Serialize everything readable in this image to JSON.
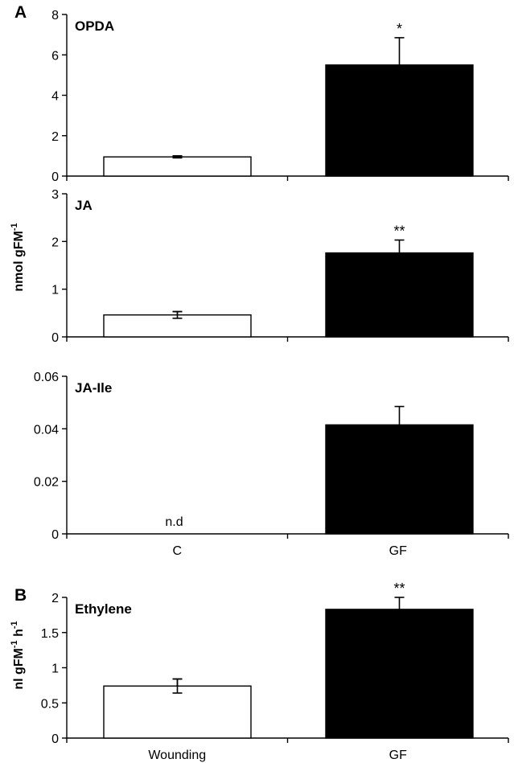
{
  "figure": {
    "panel_a_letter": "A",
    "panel_b_letter": "B",
    "ylabel_a": "nmol gFM",
    "ylabel_a_sup": "-1",
    "ylabel_b_main": "nl gFM",
    "ylabel_b_sup1": "-1",
    "ylabel_b_mid": " h",
    "ylabel_b_sup2": "-1"
  },
  "chart_data": [
    {
      "type": "bar",
      "title": "OPDA",
      "categories": [
        "C",
        "GF"
      ],
      "values": [
        0.95,
        5.5
      ],
      "errors": [
        0.05,
        1.35
      ],
      "annotations": [
        "",
        "*"
      ],
      "ylim": [
        0,
        8
      ],
      "yticks": [
        0,
        2,
        4,
        6,
        8
      ],
      "ytick_labels": [
        "0",
        "2",
        "4",
        "6",
        "8"
      ],
      "bar_colors": [
        "#ffffff",
        "#000000"
      ],
      "show_x_labels": false
    },
    {
      "type": "bar",
      "title": "JA",
      "categories": [
        "C",
        "GF"
      ],
      "values": [
        0.46,
        1.76
      ],
      "errors": [
        0.07,
        0.27
      ],
      "annotations": [
        "",
        "**"
      ],
      "ylim": [
        0,
        3
      ],
      "yticks": [
        0,
        1,
        2,
        3
      ],
      "ytick_labels": [
        "0",
        "1",
        "2",
        "3"
      ],
      "bar_colors": [
        "#ffffff",
        "#000000"
      ],
      "show_x_labels": false
    },
    {
      "type": "bar",
      "title": "JA-Ile",
      "categories": [
        "C",
        "GF"
      ],
      "values": [
        0,
        0.0415
      ],
      "errors": [
        0,
        0.007
      ],
      "annotations": [
        "n.d",
        ""
      ],
      "ylim": [
        0,
        0.06
      ],
      "yticks": [
        0,
        0.02,
        0.04,
        0.06
      ],
      "ytick_labels": [
        "0",
        "0.02",
        "0.04",
        "0.06"
      ],
      "bar_colors": [
        "#ffffff",
        "#000000"
      ],
      "show_x_labels": true
    },
    {
      "type": "bar",
      "title": "Ethylene",
      "categories": [
        "Wounding",
        "GF"
      ],
      "values": [
        0.74,
        1.83
      ],
      "errors": [
        0.1,
        0.17
      ],
      "annotations": [
        "",
        "**"
      ],
      "ylim": [
        0,
        2
      ],
      "yticks": [
        0,
        0.5,
        1,
        1.5,
        2
      ],
      "ytick_labels": [
        "0",
        "0.5",
        "1",
        "1.5",
        "2"
      ],
      "bar_colors": [
        "#ffffff",
        "#000000"
      ],
      "show_x_labels": true
    }
  ]
}
